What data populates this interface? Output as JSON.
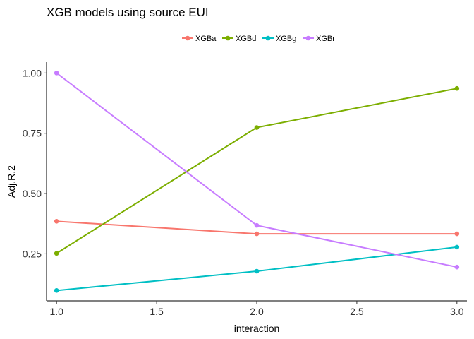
{
  "chart_data": {
    "type": "line",
    "title": "XGB models using source EUI",
    "xlabel": "interaction",
    "ylabel": "Adj.R.2",
    "xlim": [
      0.95,
      3.05
    ],
    "ylim": [
      0.055,
      1.045
    ],
    "x_ticks": [
      1.0,
      1.5,
      2.0,
      2.5,
      3.0
    ],
    "x_tick_labels": [
      "1.0",
      "1.5",
      "2.0",
      "2.5",
      "3.0"
    ],
    "y_ticks": [
      0.25,
      0.5,
      0.75,
      1.0
    ],
    "y_tick_labels": [
      "0.25",
      "0.50",
      "0.75",
      "1.00"
    ],
    "grid": false,
    "legend_position": "top",
    "x": [
      1.0,
      2.0,
      3.0
    ],
    "series": [
      {
        "name": "XGBa",
        "color": "#F8766D",
        "values": [
          0.385,
          0.333,
          0.333
        ]
      },
      {
        "name": "XGBd",
        "color": "#7CAE00",
        "values": [
          0.252,
          0.774,
          0.936
        ]
      },
      {
        "name": "XGBg",
        "color": "#00BFC4",
        "values": [
          0.098,
          0.178,
          0.278
        ]
      },
      {
        "name": "XGBr",
        "color": "#C77CFF",
        "values": [
          1.0,
          0.368,
          0.195
        ]
      }
    ]
  }
}
